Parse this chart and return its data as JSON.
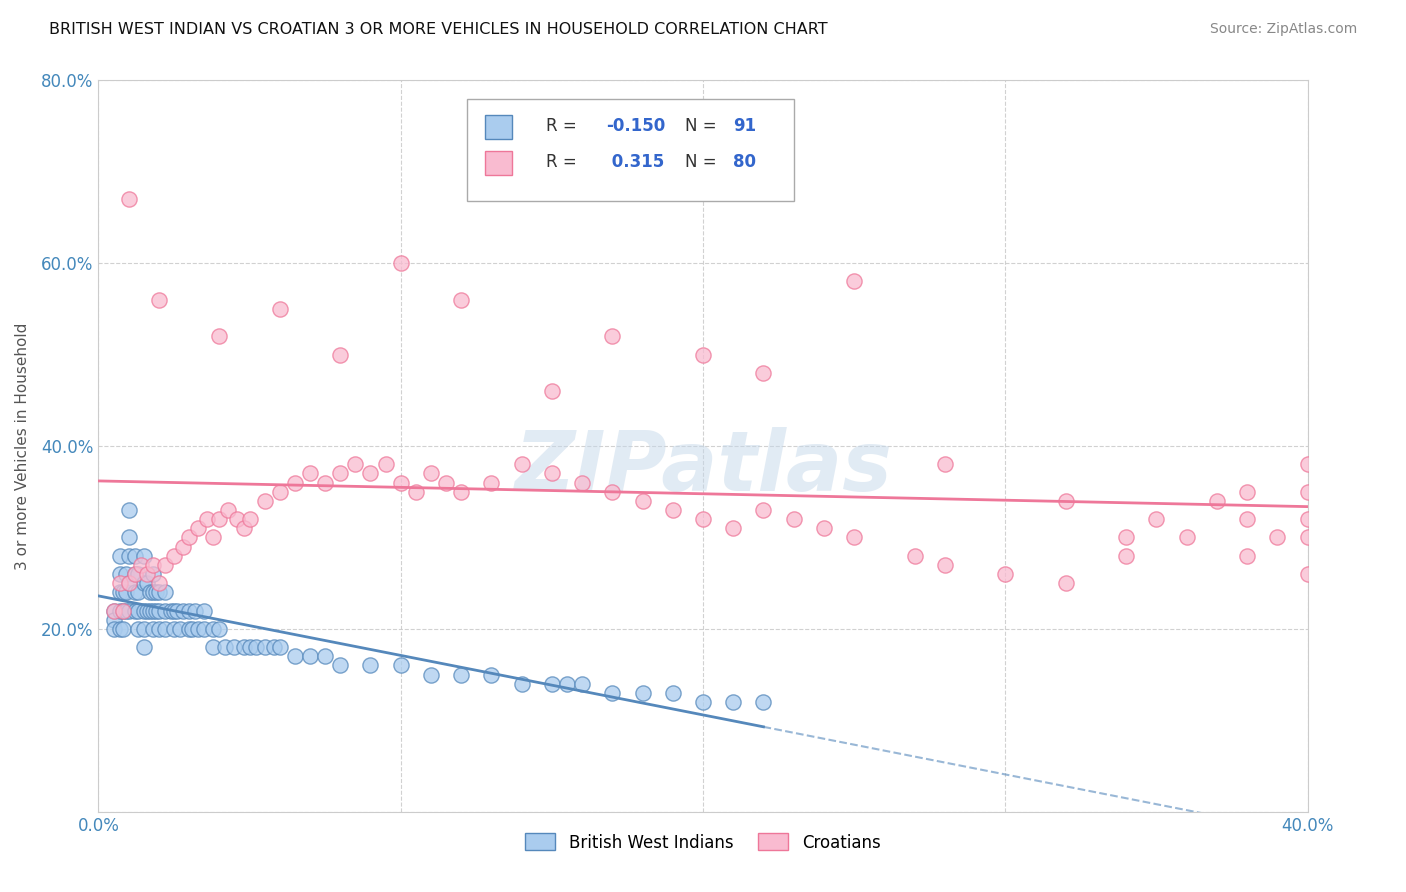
{
  "title": "BRITISH WEST INDIAN VS CROATIAN 3 OR MORE VEHICLES IN HOUSEHOLD CORRELATION CHART",
  "source": "Source: ZipAtlas.com",
  "ylabel_label": "3 or more Vehicles in Household",
  "xmin": 0.0,
  "xmax": 0.4,
  "ymin": 0.0,
  "ymax": 0.8,
  "legend_label1": "British West Indians",
  "legend_label2": "Croatians",
  "r1": "-0.150",
  "n1": "91",
  "r2": "0.315",
  "n2": "80",
  "color1": "#aaccee",
  "color2": "#f9bbd0",
  "line1_color": "#5588bb",
  "line2_color": "#ee7799",
  "bwi_x": [
    0.005,
    0.005,
    0.005,
    0.007,
    0.007,
    0.007,
    0.007,
    0.007,
    0.008,
    0.008,
    0.008,
    0.009,
    0.009,
    0.009,
    0.01,
    0.01,
    0.01,
    0.01,
    0.01,
    0.012,
    0.012,
    0.012,
    0.012,
    0.013,
    0.013,
    0.013,
    0.013,
    0.015,
    0.015,
    0.015,
    0.015,
    0.015,
    0.016,
    0.016,
    0.017,
    0.017,
    0.018,
    0.018,
    0.018,
    0.018,
    0.019,
    0.019,
    0.02,
    0.02,
    0.02,
    0.022,
    0.022,
    0.022,
    0.024,
    0.025,
    0.025,
    0.026,
    0.027,
    0.028,
    0.03,
    0.03,
    0.031,
    0.032,
    0.033,
    0.035,
    0.035,
    0.038,
    0.038,
    0.04,
    0.042,
    0.045,
    0.048,
    0.05,
    0.052,
    0.055,
    0.058,
    0.06,
    0.065,
    0.07,
    0.075,
    0.08,
    0.09,
    0.1,
    0.11,
    0.12,
    0.13,
    0.14,
    0.15,
    0.155,
    0.16,
    0.17,
    0.18,
    0.19,
    0.2,
    0.21,
    0.22
  ],
  "bwi_y": [
    0.22,
    0.21,
    0.2,
    0.28,
    0.26,
    0.24,
    0.22,
    0.2,
    0.24,
    0.22,
    0.2,
    0.26,
    0.24,
    0.22,
    0.33,
    0.3,
    0.28,
    0.25,
    0.22,
    0.28,
    0.26,
    0.24,
    0.22,
    0.26,
    0.24,
    0.22,
    0.2,
    0.28,
    0.25,
    0.22,
    0.2,
    0.18,
    0.25,
    0.22,
    0.24,
    0.22,
    0.26,
    0.24,
    0.22,
    0.2,
    0.24,
    0.22,
    0.24,
    0.22,
    0.2,
    0.24,
    0.22,
    0.2,
    0.22,
    0.22,
    0.2,
    0.22,
    0.2,
    0.22,
    0.22,
    0.2,
    0.2,
    0.22,
    0.2,
    0.22,
    0.2,
    0.2,
    0.18,
    0.2,
    0.18,
    0.18,
    0.18,
    0.18,
    0.18,
    0.18,
    0.18,
    0.18,
    0.17,
    0.17,
    0.17,
    0.16,
    0.16,
    0.16,
    0.15,
    0.15,
    0.15,
    0.14,
    0.14,
    0.14,
    0.14,
    0.13,
    0.13,
    0.13,
    0.12,
    0.12,
    0.12
  ],
  "cro_x": [
    0.005,
    0.007,
    0.008,
    0.01,
    0.012,
    0.014,
    0.016,
    0.018,
    0.02,
    0.022,
    0.025,
    0.028,
    0.03,
    0.033,
    0.036,
    0.038,
    0.04,
    0.043,
    0.046,
    0.048,
    0.05,
    0.055,
    0.06,
    0.065,
    0.07,
    0.075,
    0.08,
    0.085,
    0.09,
    0.095,
    0.1,
    0.105,
    0.11,
    0.115,
    0.12,
    0.13,
    0.14,
    0.15,
    0.16,
    0.17,
    0.18,
    0.19,
    0.2,
    0.21,
    0.22,
    0.23,
    0.24,
    0.25,
    0.27,
    0.28,
    0.3,
    0.32,
    0.34,
    0.35,
    0.37,
    0.38,
    0.38,
    0.39,
    0.4,
    0.4,
    0.4,
    0.4,
    0.4,
    0.38,
    0.36,
    0.34,
    0.32,
    0.28,
    0.25,
    0.22,
    0.2,
    0.17,
    0.15,
    0.12,
    0.1,
    0.08,
    0.06,
    0.04,
    0.02,
    0.01
  ],
  "cro_y": [
    0.22,
    0.25,
    0.22,
    0.25,
    0.26,
    0.27,
    0.26,
    0.27,
    0.25,
    0.27,
    0.28,
    0.29,
    0.3,
    0.31,
    0.32,
    0.3,
    0.32,
    0.33,
    0.32,
    0.31,
    0.32,
    0.34,
    0.35,
    0.36,
    0.37,
    0.36,
    0.37,
    0.38,
    0.37,
    0.38,
    0.36,
    0.35,
    0.37,
    0.36,
    0.35,
    0.36,
    0.38,
    0.37,
    0.36,
    0.35,
    0.34,
    0.33,
    0.32,
    0.31,
    0.33,
    0.32,
    0.31,
    0.3,
    0.28,
    0.27,
    0.26,
    0.25,
    0.3,
    0.32,
    0.34,
    0.35,
    0.28,
    0.3,
    0.35,
    0.38,
    0.32,
    0.26,
    0.3,
    0.32,
    0.3,
    0.28,
    0.34,
    0.38,
    0.58,
    0.48,
    0.5,
    0.52,
    0.46,
    0.56,
    0.6,
    0.5,
    0.55,
    0.52,
    0.56,
    0.67
  ]
}
